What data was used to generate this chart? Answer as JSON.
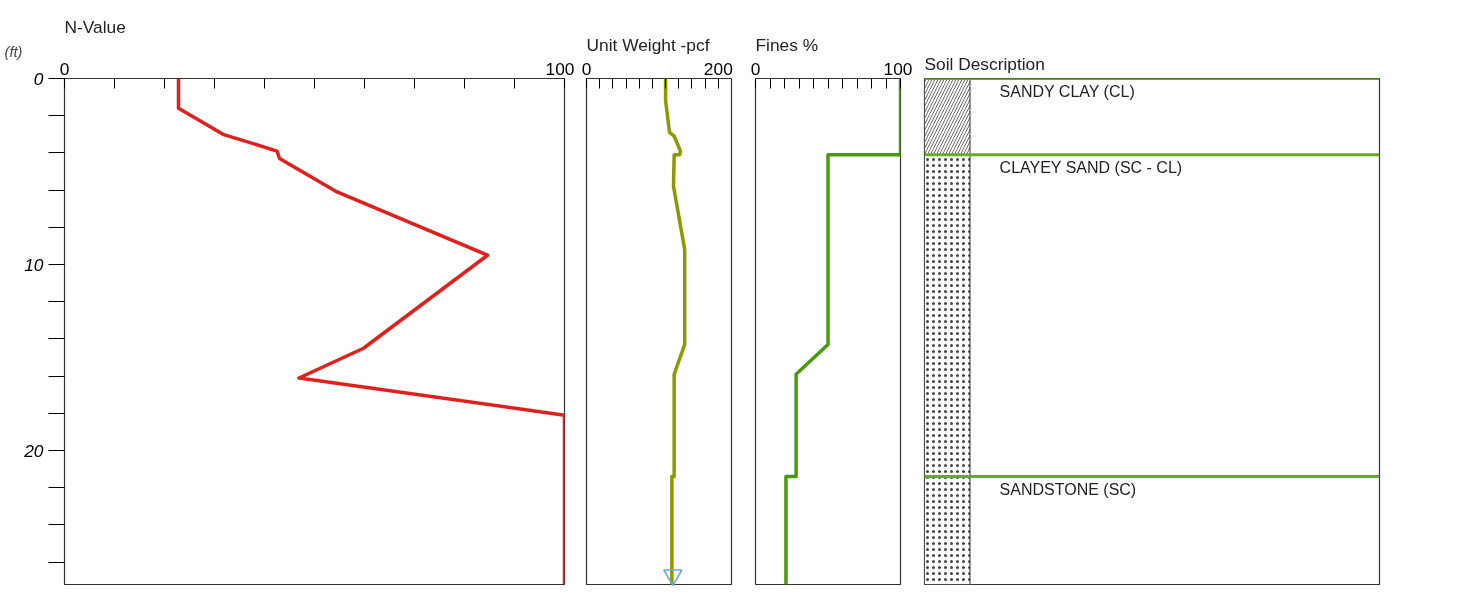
{
  "chart_data": [
    {
      "type": "line",
      "title": "N-Value",
      "ylabel": "(ft)",
      "xlim": [
        0,
        100
      ],
      "ylim": [
        27.2,
        0
      ],
      "xticks": [
        0,
        {
          "value": 10,
          "label": null
        },
        {
          "value": 20,
          "label": null
        },
        {
          "value": 30,
          "label": null
        },
        {
          "value": 40,
          "label": null
        },
        {
          "value": 50,
          "label": null
        },
        {
          "value": 60,
          "label": null
        },
        {
          "value": 70,
          "label": null
        },
        {
          "value": 80,
          "label": null
        },
        {
          "value": 90,
          "label": null
        },
        100
      ],
      "yticks": [
        0,
        {
          "value": 2,
          "label": null
        },
        {
          "value": 4,
          "label": null
        },
        {
          "value": 6,
          "label": null
        },
        {
          "value": 8,
          "label": null
        },
        10,
        {
          "value": 12,
          "label": null
        },
        {
          "value": 14,
          "label": null
        },
        {
          "value": 16,
          "label": null
        },
        {
          "value": 18,
          "label": null
        },
        20,
        {
          "value": 22,
          "label": null
        },
        {
          "value": 24,
          "label": null
        },
        {
          "value": 26,
          "label": null
        }
      ],
      "series": [
        {
          "color": "#e0201c",
          "x": [
            22.8,
            22.8,
            31.7,
            42.5,
            43,
            54.5,
            84.6,
            59.8,
            46.9,
            100,
            100
          ],
          "values": [
            0,
            1.6,
            3.0,
            3.9,
            4.3,
            6.1,
            9.5,
            14.5,
            16.1,
            18.1,
            27.2
          ]
        }
      ]
    },
    {
      "type": "line",
      "title": "Unit Weight -pcf",
      "xlim": [
        0,
        220
      ],
      "ylim": [
        27.2,
        0
      ],
      "tick_labels": "x",
      "xticks": [
        0,
        {
          "value": 20,
          "label": null
        },
        {
          "value": 40,
          "label": null
        },
        {
          "value": 60,
          "label": null
        },
        {
          "value": 80,
          "label": null
        },
        {
          "value": 100,
          "label": null
        },
        {
          "value": 120,
          "label": null
        },
        {
          "value": 140,
          "label": null
        },
        {
          "value": 160,
          "label": null
        },
        {
          "value": 180,
          "label": null
        },
        200
      ],
      "series": [
        {
          "color": "#8a9a00",
          "x": [
            120,
            120,
            126,
            133,
            142.5,
            141.5,
            133,
            132,
            149,
            149,
            133,
            133,
            129.5,
            129.5
          ],
          "values": [
            0,
            1.2,
            2.9,
            3.1,
            3.9,
            4.1,
            4.1,
            5.8,
            9.2,
            14.3,
            15.9,
            21.4,
            21.4,
            27.2
          ]
        },
        {
          "type": "scatter",
          "marker": "triangle",
          "color": "#6fa8dc",
          "x": [
            131
          ],
          "values": [
            26.7
          ]
        }
      ]
    },
    {
      "type": "line",
      "title": "Fines  %",
      "xlim": [
        0,
        100
      ],
      "ylim": [
        27.2,
        0
      ],
      "tick_labels": "x",
      "xticks": [
        0,
        {
          "value": 10,
          "label": null
        },
        {
          "value": 20,
          "label": null
        },
        {
          "value": 30,
          "label": null
        },
        {
          "value": 40,
          "label": null
        },
        {
          "value": 50,
          "label": null
        },
        {
          "value": 60,
          "label": null
        },
        {
          "value": 70,
          "label": null
        },
        {
          "value": 80,
          "label": null
        },
        {
          "value": 90,
          "label": null
        },
        100
      ],
      "series": [
        {
          "color": "#4a9a10",
          "x": [
            100,
            100,
            50,
            50,
            28,
            28,
            21,
            21
          ],
          "values": [
            0,
            4.1,
            4.1,
            14.3,
            15.9,
            21.4,
            21.4,
            27.2
          ]
        }
      ]
    },
    {
      "type": "bar",
      "stacked": true,
      "title": "Soil Description",
      "categories": [
        null
      ],
      "ylim": [
        27.2,
        0
      ],
      "tick_labels": false,
      "series": [
        {
          "name": "SANDY CLAY (CL)",
          "color": "#ffffff",
          "values": [
            4.1
          ]
        },
        {
          "name": "CLAYEY SAND (SC - CL)",
          "color": "#ffffff",
          "values": [
            17.3
          ]
        },
        {
          "name": "SANDSTONE (SC)",
          "color": "#ffffff",
          "values": [
            5.8
          ]
        }
      ],
      "ref_lines": [
        {
          "axis": "y",
          "value": 0,
          "color": "#6aaa20"
        },
        {
          "axis": "y",
          "value": 4.1,
          "color": "#6aaa20"
        },
        {
          "axis": "y",
          "value": 21.4,
          "color": "#6aaa20"
        }
      ]
    }
  ]
}
